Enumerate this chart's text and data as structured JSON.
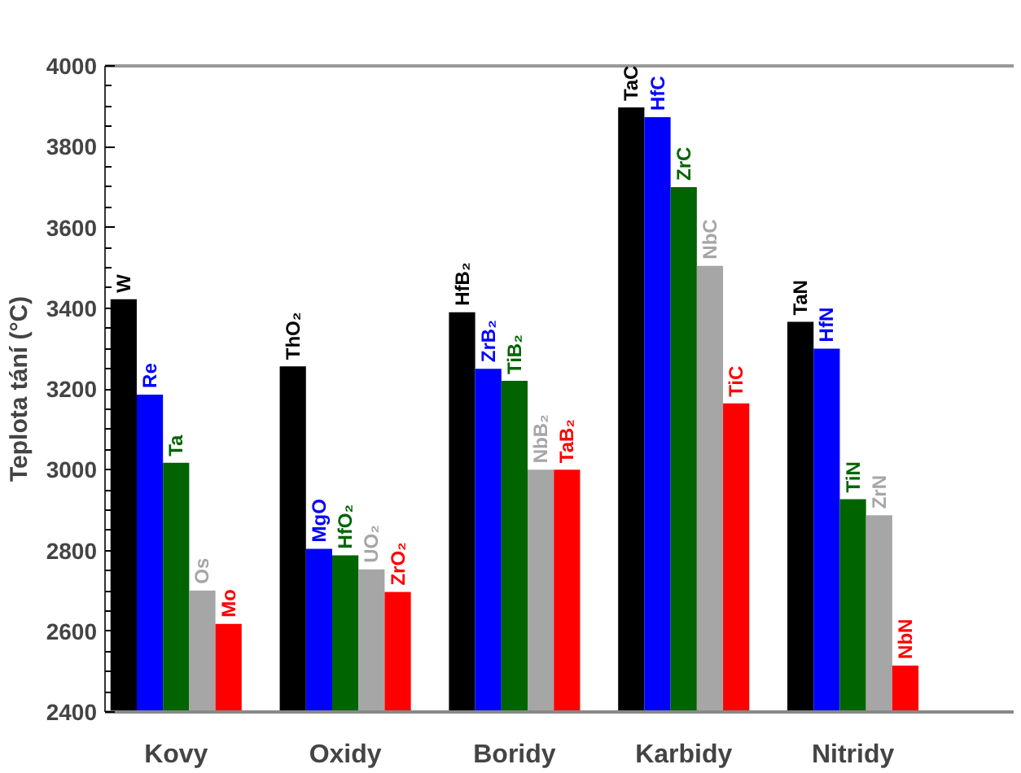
{
  "chart_data": {
    "type": "bar",
    "ylabel": "Teplota tání (°C)",
    "categories": [
      "Kovy",
      "Oxidy",
      "Boridy",
      "Karbidy",
      "Nitridy"
    ],
    "series": [
      {
        "color": "#000000",
        "values": [
          3422,
          3256,
          3390,
          3897,
          3366
        ]
      },
      {
        "color": "#0000ff",
        "values": [
          3186,
          2804,
          3250,
          3873,
          3300
        ]
      },
      {
        "color": "#006400",
        "values": [
          3017,
          2788,
          3220,
          3700,
          2927
        ]
      },
      {
        "color": "#a6a6a6",
        "values": [
          2701,
          2753,
          3000,
          3505,
          2887
        ]
      },
      {
        "color": "#ff0000",
        "values": [
          2618,
          2697,
          3000,
          3164,
          2515
        ]
      }
    ],
    "ylim": [
      2400,
      4000
    ],
    "yticks": [
      2400,
      {
        "value": 2450,
        "label": null
      },
      {
        "value": 2500,
        "label": null
      },
      {
        "value": 2550,
        "label": null
      },
      2600,
      {
        "value": 2650,
        "label": null
      },
      {
        "value": 2700,
        "label": null
      },
      {
        "value": 2750,
        "label": null
      },
      2800,
      {
        "value": 2850,
        "label": null
      },
      {
        "value": 2900,
        "label": null
      },
      {
        "value": 2950,
        "label": null
      },
      3000,
      {
        "value": 3050,
        "label": null
      },
      {
        "value": 3100,
        "label": null
      },
      {
        "value": 3150,
        "label": null
      },
      3200,
      {
        "value": 3250,
        "label": null
      },
      {
        "value": 3300,
        "label": null
      },
      {
        "value": 3350,
        "label": null
      },
      3400,
      {
        "value": 3450,
        "label": null
      },
      {
        "value": 3500,
        "label": null
      },
      {
        "value": 3550,
        "label": null
      },
      3600,
      {
        "value": 3650,
        "label": null
      },
      {
        "value": 3700,
        "label": null
      },
      {
        "value": 3750,
        "label": null
      },
      3800,
      {
        "value": 3850,
        "label": null
      },
      {
        "value": 3900,
        "label": null
      },
      {
        "value": 3950,
        "label": null
      },
      4000
    ],
    "grid": false,
    "annotations": [
      "W",
      "Re",
      "Ta",
      "Os",
      "Mo",
      "ThO₂",
      "MgO",
      "HfO₂",
      "UO₂",
      "ZrO₂",
      "HfB₂",
      "ZrB₂",
      "TiB₂",
      "NbB₂",
      "TaB₂",
      "TaC",
      "HfC",
      "ZrC",
      "NbC",
      "TiC",
      "TaN",
      "HfN",
      "TiN",
      "ZrN",
      "NbN"
    ]
  }
}
